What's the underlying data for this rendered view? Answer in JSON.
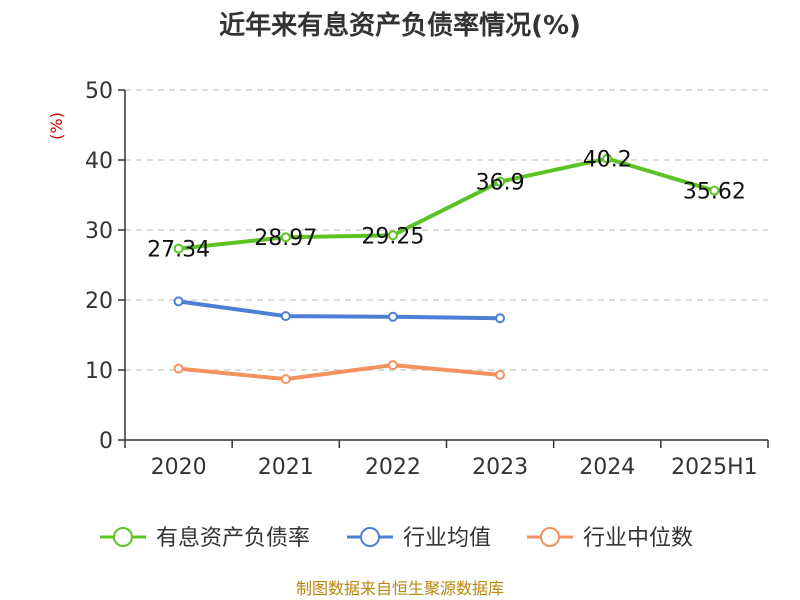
{
  "chart_data": {
    "type": "line",
    "title": "近年来有息资产负债率情况(%)",
    "ylabel": "(%)",
    "xlabel": "",
    "categories": [
      "2020",
      "2021",
      "2022",
      "2023",
      "2024",
      "2025H1"
    ],
    "ylim": [
      0,
      50
    ],
    "yticks": [
      0,
      10,
      20,
      30,
      40,
      50
    ],
    "grid": true,
    "legend_position": "bottom",
    "series": [
      {
        "name": "有息资产负债率",
        "color": "#5cc323",
        "values": [
          27.34,
          28.97,
          29.25,
          36.9,
          40.2,
          35.62
        ],
        "labels": [
          "27.34",
          "28.97",
          "29.25",
          "36.9",
          "40.2",
          "35.62"
        ]
      },
      {
        "name": "行业均值",
        "color": "#4e7fd6",
        "values": [
          19.8,
          17.7,
          17.6,
          17.4,
          null,
          null
        ]
      },
      {
        "name": "行业中位数",
        "color": "#f4915e",
        "values": [
          10.2,
          8.7,
          10.7,
          9.3,
          null,
          null
        ]
      }
    ],
    "source": "制图数据来自恒生聚源数据库"
  }
}
